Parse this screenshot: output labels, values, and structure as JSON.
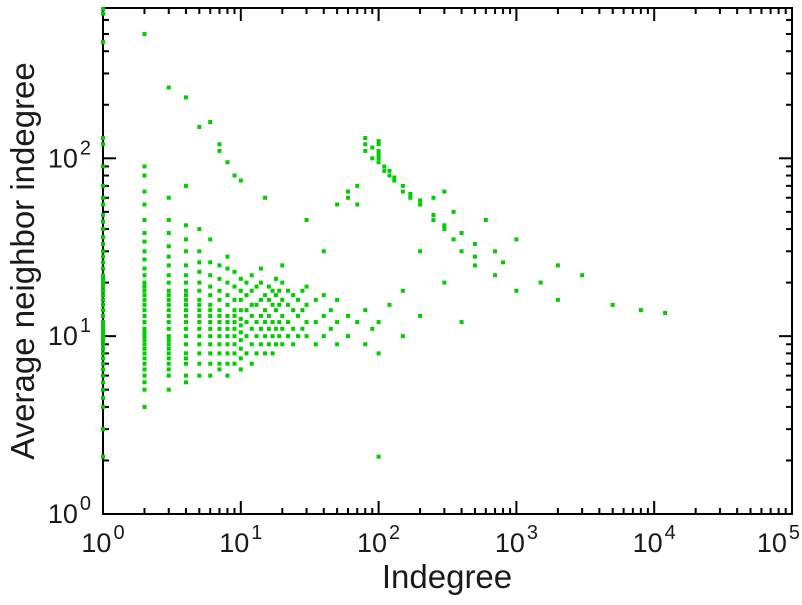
{
  "figure": {
    "background": "#ffffff"
  },
  "chart_data": {
    "type": "scatter",
    "title": "",
    "xlabel": "Indegree",
    "ylabel": "Average neighbor indegree",
    "x_scale": "log",
    "y_scale": "log",
    "xlim": [
      1,
      100000
    ],
    "ylim": [
      1,
      700
    ],
    "x_major_tick_exponents": [
      0,
      1,
      2,
      3,
      4,
      5
    ],
    "y_major_tick_exponents": [
      0,
      1,
      2
    ],
    "grid": false,
    "legend": false,
    "point_color": "#00cc00",
    "axis_color": "#000000",
    "points": [
      [
        1,
        2.1
      ],
      [
        1,
        3
      ],
      [
        1,
        4
      ],
      [
        1,
        4.5
      ],
      [
        1,
        5
      ],
      [
        1,
        5.5
      ],
      [
        1,
        6
      ],
      [
        1,
        6.5
      ],
      [
        1,
        7
      ],
      [
        1,
        7.5
      ],
      [
        1,
        8
      ],
      [
        1,
        8.5
      ],
      [
        1,
        9
      ],
      [
        1,
        9.5
      ],
      [
        1,
        10
      ],
      [
        1,
        10.5
      ],
      [
        1,
        11
      ],
      [
        1,
        11.5
      ],
      [
        1,
        12
      ],
      [
        1,
        13
      ],
      [
        1,
        14
      ],
      [
        1,
        15
      ],
      [
        1,
        16
      ],
      [
        1,
        17
      ],
      [
        1,
        18
      ],
      [
        1,
        19
      ],
      [
        1,
        20
      ],
      [
        1,
        21
      ],
      [
        1,
        22
      ],
      [
        1,
        24
      ],
      [
        1,
        26
      ],
      [
        1,
        28
      ],
      [
        1,
        30
      ],
      [
        1,
        33
      ],
      [
        1,
        36
      ],
      [
        1,
        40
      ],
      [
        1,
        44
      ],
      [
        1,
        48
      ],
      [
        1,
        55
      ],
      [
        1,
        60
      ],
      [
        1,
        70
      ],
      [
        1,
        90
      ],
      [
        1,
        120
      ],
      [
        1,
        130
      ],
      [
        1,
        450
      ],
      [
        1,
        650
      ],
      [
        1,
        690
      ],
      [
        2,
        4
      ],
      [
        2,
        5
      ],
      [
        2,
        5.5
      ],
      [
        2,
        6
      ],
      [
        2,
        6.5
      ],
      [
        2,
        7
      ],
      [
        2,
        7.5
      ],
      [
        2,
        8
      ],
      [
        2,
        8.5
      ],
      [
        2,
        9
      ],
      [
        2,
        9.5
      ],
      [
        2,
        10
      ],
      [
        2,
        10.5
      ],
      [
        2,
        11
      ],
      [
        2,
        12
      ],
      [
        2,
        13
      ],
      [
        2,
        14
      ],
      [
        2,
        15
      ],
      [
        2,
        16
      ],
      [
        2,
        17
      ],
      [
        2,
        18
      ],
      [
        2,
        19
      ],
      [
        2,
        20
      ],
      [
        2,
        22
      ],
      [
        2,
        24
      ],
      [
        2,
        27
      ],
      [
        2,
        30
      ],
      [
        2,
        34
      ],
      [
        2,
        38
      ],
      [
        2,
        45
      ],
      [
        2,
        55
      ],
      [
        2,
        65
      ],
      [
        2,
        80
      ],
      [
        2,
        90
      ],
      [
        2,
        500
      ],
      [
        3,
        5
      ],
      [
        3,
        6
      ],
      [
        3,
        6.5
      ],
      [
        3,
        7
      ],
      [
        3,
        7.5
      ],
      [
        3,
        8
      ],
      [
        3,
        8.5
      ],
      [
        3,
        9
      ],
      [
        3,
        9.5
      ],
      [
        3,
        10
      ],
      [
        3,
        11
      ],
      [
        3,
        12
      ],
      [
        3,
        13
      ],
      [
        3,
        14
      ],
      [
        3,
        15
      ],
      [
        3,
        16
      ],
      [
        3,
        17
      ],
      [
        3,
        18
      ],
      [
        3,
        20
      ],
      [
        3,
        22
      ],
      [
        3,
        25
      ],
      [
        3,
        28
      ],
      [
        3,
        32
      ],
      [
        3,
        38
      ],
      [
        3,
        45
      ],
      [
        3,
        60
      ],
      [
        3,
        250
      ],
      [
        4,
        5.5
      ],
      [
        4,
        6
      ],
      [
        4,
        7
      ],
      [
        4,
        7.5
      ],
      [
        4,
        8
      ],
      [
        4,
        9
      ],
      [
        4,
        10
      ],
      [
        4,
        11
      ],
      [
        4,
        12
      ],
      [
        4,
        13
      ],
      [
        4,
        14
      ],
      [
        4,
        15
      ],
      [
        4,
        16
      ],
      [
        4,
        17
      ],
      [
        4,
        18
      ],
      [
        4,
        20
      ],
      [
        4,
        22
      ],
      [
        4,
        25
      ],
      [
        4,
        30
      ],
      [
        4,
        35
      ],
      [
        4,
        42
      ],
      [
        4,
        70
      ],
      [
        4,
        220
      ],
      [
        5,
        6
      ],
      [
        5,
        7
      ],
      [
        5,
        8
      ],
      [
        5,
        9
      ],
      [
        5,
        10
      ],
      [
        5,
        11
      ],
      [
        5,
        12
      ],
      [
        5,
        13
      ],
      [
        5,
        14
      ],
      [
        5,
        15
      ],
      [
        5,
        16
      ],
      [
        5,
        18
      ],
      [
        5,
        20
      ],
      [
        5,
        23
      ],
      [
        5,
        26
      ],
      [
        5,
        30
      ],
      [
        5,
        40
      ],
      [
        5,
        150
      ],
      [
        6,
        6
      ],
      [
        6,
        7
      ],
      [
        6,
        8
      ],
      [
        6,
        9
      ],
      [
        6,
        10
      ],
      [
        6,
        11
      ],
      [
        6,
        12
      ],
      [
        6,
        13
      ],
      [
        6,
        14
      ],
      [
        6,
        15
      ],
      [
        6,
        17
      ],
      [
        6,
        19
      ],
      [
        6,
        22
      ],
      [
        6,
        26
      ],
      [
        6,
        35
      ],
      [
        6,
        160
      ],
      [
        7,
        6.5
      ],
      [
        7,
        7
      ],
      [
        7,
        8
      ],
      [
        7,
        9
      ],
      [
        7,
        10
      ],
      [
        7,
        11
      ],
      [
        7,
        12
      ],
      [
        7,
        13
      ],
      [
        7,
        14
      ],
      [
        7,
        16
      ],
      [
        7,
        18
      ],
      [
        7,
        21
      ],
      [
        7,
        25
      ],
      [
        7,
        110
      ],
      [
        7,
        120
      ],
      [
        8,
        6
      ],
      [
        8,
        7
      ],
      [
        8,
        8
      ],
      [
        8,
        9
      ],
      [
        8,
        10
      ],
      [
        8,
        11
      ],
      [
        8,
        12
      ],
      [
        8,
        13
      ],
      [
        8,
        15
      ],
      [
        8,
        17
      ],
      [
        8,
        20
      ],
      [
        8,
        24
      ],
      [
        8,
        28
      ],
      [
        8,
        95
      ],
      [
        9,
        7
      ],
      [
        9,
        8
      ],
      [
        9,
        9
      ],
      [
        9,
        10
      ],
      [
        9,
        11
      ],
      [
        9,
        12
      ],
      [
        9,
        13
      ],
      [
        9,
        14
      ],
      [
        9,
        16
      ],
      [
        9,
        19
      ],
      [
        9,
        23
      ],
      [
        9,
        80
      ],
      [
        10,
        6.5
      ],
      [
        10,
        7.5
      ],
      [
        10,
        8.5
      ],
      [
        10,
        9.5
      ],
      [
        10,
        10.5
      ],
      [
        10,
        11.5
      ],
      [
        10,
        12.5
      ],
      [
        10,
        14
      ],
      [
        10,
        16
      ],
      [
        10,
        18
      ],
      [
        10,
        21
      ],
      [
        10,
        75
      ],
      [
        11,
        8
      ],
      [
        11,
        10
      ],
      [
        11,
        12
      ],
      [
        11,
        14
      ],
      [
        11,
        17
      ],
      [
        11,
        20
      ],
      [
        12,
        7
      ],
      [
        12,
        9
      ],
      [
        12,
        11
      ],
      [
        12,
        13
      ],
      [
        12,
        15
      ],
      [
        12,
        18
      ],
      [
        12,
        22
      ],
      [
        13,
        8
      ],
      [
        13,
        10
      ],
      [
        13,
        12
      ],
      [
        13,
        15
      ],
      [
        13,
        19
      ],
      [
        14,
        9
      ],
      [
        14,
        11
      ],
      [
        14,
        13
      ],
      [
        14,
        16
      ],
      [
        14,
        20
      ],
      [
        14,
        24
      ],
      [
        15,
        8
      ],
      [
        15,
        10
      ],
      [
        15,
        12
      ],
      [
        15,
        14
      ],
      [
        15,
        17
      ],
      [
        15,
        60
      ],
      [
        16,
        9
      ],
      [
        16,
        11
      ],
      [
        16,
        13
      ],
      [
        16,
        16
      ],
      [
        16,
        19
      ],
      [
        17,
        8
      ],
      [
        17,
        10
      ],
      [
        17,
        12
      ],
      [
        17,
        15
      ],
      [
        17,
        18
      ],
      [
        18,
        9
      ],
      [
        18,
        11
      ],
      [
        18,
        14
      ],
      [
        18,
        17
      ],
      [
        18,
        21
      ],
      [
        19,
        10
      ],
      [
        19,
        12
      ],
      [
        19,
        15
      ],
      [
        19,
        18
      ],
      [
        20,
        9
      ],
      [
        20,
        11
      ],
      [
        20,
        13
      ],
      [
        20,
        16
      ],
      [
        20,
        20
      ],
      [
        20,
        25
      ],
      [
        22,
        10
      ],
      [
        22,
        12
      ],
      [
        22,
        15
      ],
      [
        22,
        18
      ],
      [
        24,
        9
      ],
      [
        24,
        11
      ],
      [
        24,
        14
      ],
      [
        24,
        17
      ],
      [
        26,
        10
      ],
      [
        26,
        13
      ],
      [
        26,
        16
      ],
      [
        28,
        11
      ],
      [
        28,
        14
      ],
      [
        28,
        18
      ],
      [
        30,
        10
      ],
      [
        30,
        12
      ],
      [
        30,
        15
      ],
      [
        30,
        19
      ],
      [
        30,
        45
      ],
      [
        35,
        9
      ],
      [
        35,
        12
      ],
      [
        35,
        16
      ],
      [
        40,
        10
      ],
      [
        40,
        13
      ],
      [
        40,
        17
      ],
      [
        40,
        30
      ],
      [
        45,
        11
      ],
      [
        45,
        14
      ],
      [
        50,
        9
      ],
      [
        50,
        12
      ],
      [
        50,
        16
      ],
      [
        50,
        55
      ],
      [
        60,
        10
      ],
      [
        60,
        13
      ],
      [
        60,
        60
      ],
      [
        60,
        65
      ],
      [
        70,
        12
      ],
      [
        70,
        55
      ],
      [
        70,
        70
      ],
      [
        80,
        9
      ],
      [
        80,
        14
      ],
      [
        80,
        110
      ],
      [
        80,
        120
      ],
      [
        80,
        130
      ],
      [
        90,
        11
      ],
      [
        90,
        100
      ],
      [
        90,
        115
      ],
      [
        100,
        2.1
      ],
      [
        100,
        8
      ],
      [
        100,
        12
      ],
      [
        100,
        95
      ],
      [
        100,
        100
      ],
      [
        100,
        105
      ],
      [
        100,
        110
      ],
      [
        100,
        120
      ],
      [
        100,
        125
      ],
      [
        110,
        85
      ],
      [
        110,
        90
      ],
      [
        120,
        15
      ],
      [
        120,
        80
      ],
      [
        120,
        85
      ],
      [
        130,
        75
      ],
      [
        130,
        78
      ],
      [
        150,
        10
      ],
      [
        150,
        18
      ],
      [
        150,
        65
      ],
      [
        150,
        70
      ],
      [
        170,
        60
      ],
      [
        170,
        63
      ],
      [
        200,
        13
      ],
      [
        200,
        30
      ],
      [
        200,
        55
      ],
      [
        200,
        58
      ],
      [
        250,
        45
      ],
      [
        250,
        48
      ],
      [
        250,
        60
      ],
      [
        300,
        20
      ],
      [
        300,
        40
      ],
      [
        300,
        42
      ],
      [
        300,
        65
      ],
      [
        350,
        35
      ],
      [
        350,
        50
      ],
      [
        400,
        12
      ],
      [
        400,
        30
      ],
      [
        400,
        38
      ],
      [
        500,
        25
      ],
      [
        500,
        28
      ],
      [
        500,
        33
      ],
      [
        600,
        45
      ],
      [
        700,
        22
      ],
      [
        700,
        30
      ],
      [
        800,
        26
      ],
      [
        1000,
        18
      ],
      [
        1000,
        35
      ],
      [
        1500,
        20
      ],
      [
        2000,
        16
      ],
      [
        2000,
        25
      ],
      [
        3000,
        22
      ],
      [
        5000,
        15
      ],
      [
        8000,
        14
      ],
      [
        12000,
        13.5
      ]
    ]
  }
}
